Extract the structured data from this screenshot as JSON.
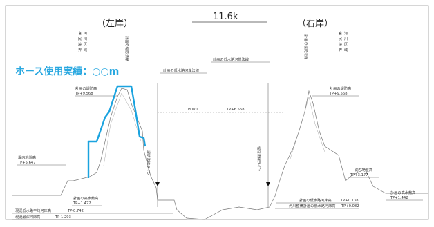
{
  "section_label": "11.6k",
  "left_bank": "（左岸）",
  "right_bank": "（右岸）",
  "hose_label": "ホース使用実績：○○m",
  "left_boundary_stack": [
    "官",
    "民",
    "境",
    "界"
  ],
  "left_boundary_stack2": [
    "河",
    "川",
    "区",
    "域"
  ],
  "right_boundary_stack": [
    "官",
    "民",
    "境",
    "界"
  ],
  "right_boundary_stack2": [
    "河",
    "川",
    "区",
    "域"
  ],
  "left_planned_levee_vertical": "計画の堤防法線",
  "right_planned_levee_vertical": "計画の堤防法線",
  "low_water_bank_line": "計画の低水路河岸法線",
  "low_water_bank_boundary": "計画の低水路河岸法線",
  "left_planned_levee_height": "計画の堤防高",
  "left_planned_levee_tp": "TP+9.568",
  "right_planned_levee_height": "計画の堤防高",
  "right_planned_levee_tp": "TP+9.568",
  "hwl": "H W L",
  "hwl_tp": "TP+6.568",
  "left_inland_ground": "堤内地盤高",
  "left_inland_tp": "TP+5.647",
  "right_inland_ground": "堤内地盤高",
  "right_inland_tp": "TP+3.177",
  "left_high_water_bed": "計画の高水敷高",
  "left_high_water_tp": "TP+1.422",
  "right_high_water_bed": "計画の高水敷高",
  "right_high_water_tp": "TP+1.442",
  "left_survey_line": "堤防法線ライン",
  "right_survey_line": "堤防法線ライン",
  "planned_low_water_bed": "計画の低水路河床高",
  "planned_low_water_bed_tp": "TP+0.138",
  "river_plan_low_water_bed": "河川整備計画の低水路河床高",
  "river_plan_low_water_bed_tp": "TP+0.082",
  "current_avg_bed": "現況低水路平均河床高",
  "current_avg_bed_tp": "TP-0.742",
  "current_deepest_bed": "現況最深河床高",
  "current_deepest_bed_tp": "TP-1.293"
}
